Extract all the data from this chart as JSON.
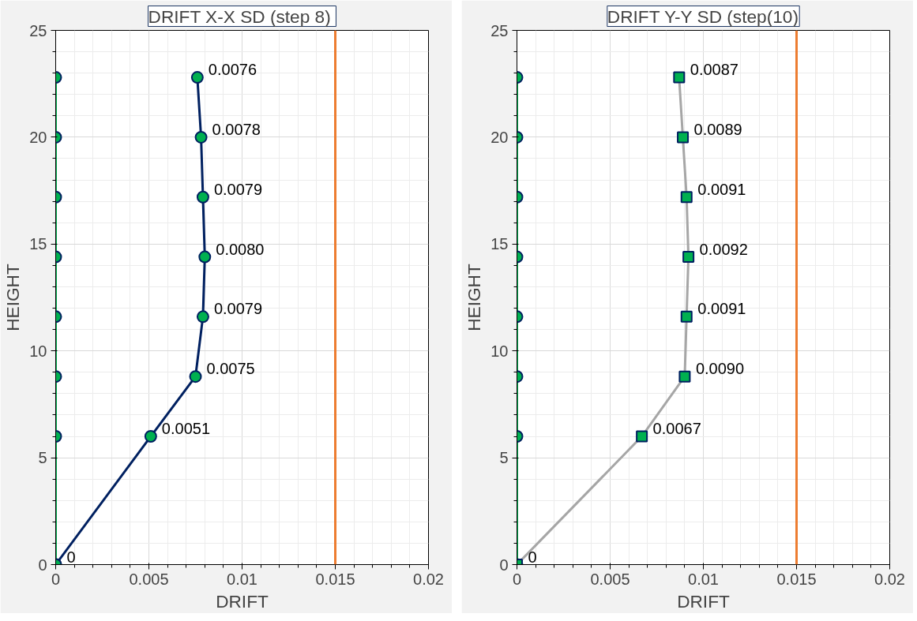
{
  "chart_data": [
    {
      "type": "line",
      "orientation": "horizontal",
      "title": "DRIFT X-X  SD (step 8)",
      "xlabel": "DRIFT",
      "ylabel": "HEIGHT",
      "xlim": [
        0,
        0.02
      ],
      "xticks": [
        0,
        0.005,
        0.01,
        0.015,
        0.02
      ],
      "ylim": [
        0,
        25
      ],
      "yticks": [
        0,
        5,
        10,
        15,
        20,
        25
      ],
      "grid": true,
      "series": [
        {
          "color": "#00b050",
          "marker": "circle",
          "x": [
            0,
            6,
            8.8,
            11.6,
            14.4,
            17.2,
            20,
            22.8
          ],
          "values": [
            0,
            0,
            0,
            0,
            0,
            0,
            0,
            0
          ]
        },
        {
          "color": "#002060",
          "marker": "circle",
          "x": [
            0,
            6,
            8.8,
            11.6,
            14.4,
            17.2,
            20,
            22.8
          ],
          "values": [
            0,
            0.0051,
            0.0075,
            0.0079,
            0.008,
            0.0079,
            0.0078,
            0.0076
          ],
          "value_labels": [
            "0",
            "0.0051",
            "0.0075",
            "0.0079",
            "0.0080",
            "0.0079",
            "0.0078",
            "0.0076"
          ]
        }
      ],
      "ref_lines": [
        {
          "axis": "x",
          "value": 0.015,
          "color": "#ed7d31"
        }
      ]
    },
    {
      "type": "line",
      "orientation": "horizontal",
      "title": "DRIFT Y-Y SD (step(10)",
      "xlabel": "DRIFT",
      "ylabel": "HEIGHT",
      "xlim": [
        0,
        0.02
      ],
      "xticks": [
        0,
        0.005,
        0.01,
        0.015,
        0.02
      ],
      "ylim": [
        0,
        25
      ],
      "yticks": [
        0,
        5,
        10,
        15,
        20,
        25
      ],
      "grid": true,
      "series": [
        {
          "color": "#00b050",
          "marker": "circle",
          "x": [
            0,
            6,
            8.8,
            11.6,
            14.4,
            17.2,
            20,
            22.8
          ],
          "values": [
            0,
            0,
            0,
            0,
            0,
            0,
            0,
            0
          ]
        },
        {
          "color": "#a6a6a6",
          "marker": "square",
          "x": [
            0,
            6,
            8.8,
            11.6,
            14.4,
            17.2,
            20,
            22.8
          ],
          "values": [
            0,
            0.0067,
            0.009,
            0.0091,
            0.0092,
            0.0091,
            0.0089,
            0.0087
          ],
          "value_labels": [
            "0",
            "0.0067",
            "0.0090",
            "0.0091",
            "0.0092",
            "0.0091",
            "0.0089",
            "0.0087"
          ]
        }
      ],
      "ref_lines": [
        {
          "axis": "x",
          "value": 0.015,
          "color": "#ed7d31"
        }
      ]
    }
  ]
}
